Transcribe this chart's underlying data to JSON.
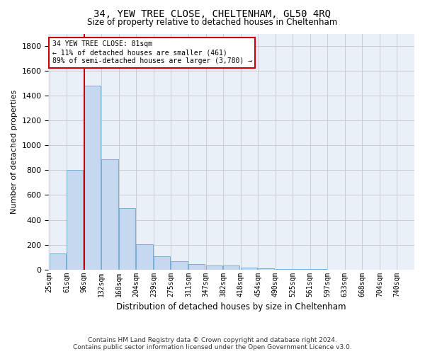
{
  "title": "34, YEW TREE CLOSE, CHELTENHAM, GL50 4RQ",
  "subtitle": "Size of property relative to detached houses in Cheltenham",
  "xlabel": "Distribution of detached houses by size in Cheltenham",
  "ylabel": "Number of detached properties",
  "footer_line1": "Contains HM Land Registry data © Crown copyright and database right 2024.",
  "footer_line2": "Contains public sector information licensed under the Open Government Licence v3.0.",
  "annotation_title": "34 YEW TREE CLOSE: 81sqm",
  "annotation_line1": "← 11% of detached houses are smaller (461)",
  "annotation_line2": "89% of semi-detached houses are larger (3,780) →",
  "bar_color": "#c5d8f0",
  "bar_edge_color": "#7aadd4",
  "vline_color": "#cc0000",
  "vline_x": 2,
  "categories": [
    "25sqm",
    "61sqm",
    "96sqm",
    "132sqm",
    "168sqm",
    "204sqm",
    "239sqm",
    "275sqm",
    "311sqm",
    "347sqm",
    "382sqm",
    "418sqm",
    "454sqm",
    "490sqm",
    "525sqm",
    "561sqm",
    "597sqm",
    "633sqm",
    "668sqm",
    "704sqm",
    "740sqm"
  ],
  "values": [
    130,
    800,
    1480,
    885,
    495,
    205,
    105,
    65,
    45,
    35,
    30,
    15,
    10,
    5,
    2,
    1,
    0,
    0,
    0,
    0,
    0
  ],
  "ylim": [
    0,
    1900
  ],
  "yticks": [
    0,
    200,
    400,
    600,
    800,
    1000,
    1200,
    1400,
    1600,
    1800
  ],
  "background_color": "#ffffff",
  "plot_bg_color": "#eaf0f8",
  "grid_color": "#c8c8c8"
}
